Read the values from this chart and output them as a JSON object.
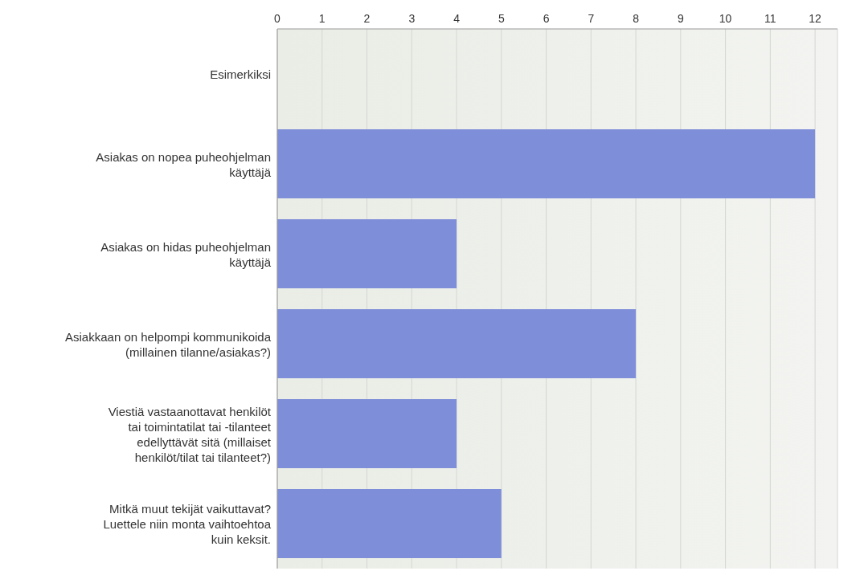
{
  "chart_data": {
    "type": "bar",
    "orientation": "horizontal",
    "categories": [
      "Esimerkiksi",
      "Asiakas on nopea puheohjelman käyttäjä",
      "Asiakas on hidas puheohjelman käyttäjä",
      "Asiakkaan on helpompi kommunikoida (millainen tilanne/asiakas?)",
      "Viestiä vastaanottavat henkilöt tai toimintatilat tai -tilanteet edellyttävät sitä (millaiset henkilöt/tilat tai tilanteet?)",
      "Mitkä muut tekijät vaikuttavat? Luettele niin monta vaihtoehtoa kuin keksit."
    ],
    "values": [
      0,
      12,
      4,
      8,
      4,
      5
    ],
    "color": "#7f8ed8",
    "xlim": [
      0,
      12.5
    ],
    "xticks": [
      0,
      1,
      2,
      3,
      4,
      5,
      6,
      7,
      8,
      9,
      10,
      11,
      12
    ],
    "grid": "x",
    "legend": false
  }
}
